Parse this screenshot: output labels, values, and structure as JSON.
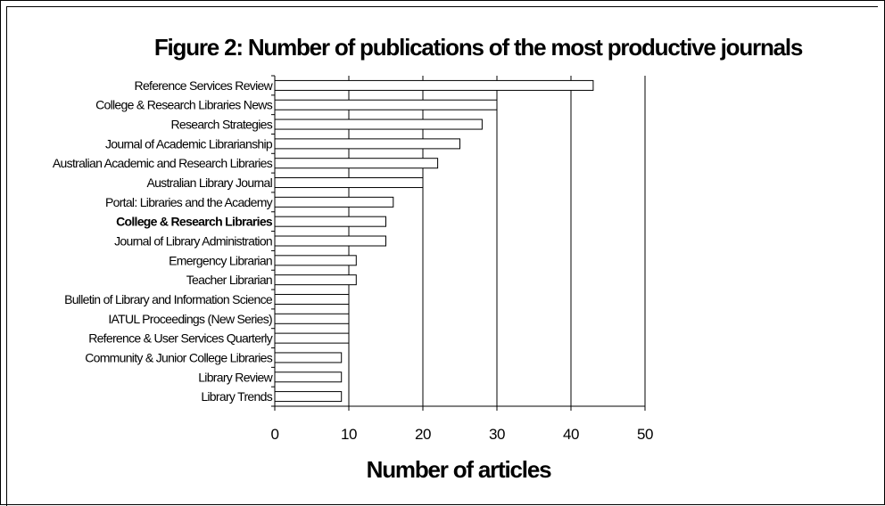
{
  "chart_data": {
    "type": "bar",
    "orientation": "horizontal",
    "title": "Figure 2: Number of publications of the most productive journals",
    "xlabel": "Number of articles",
    "ylabel": "",
    "xlim": [
      0,
      50
    ],
    "xticks": [
      "0",
      "10",
      "20",
      "30",
      "40",
      "50"
    ],
    "grid": true,
    "legend": "none",
    "bar_fill": "#ffffff",
    "bar_stroke": "#000000",
    "categories": [
      "Reference Services Review",
      "College & Research Libraries News",
      "Research Strategies",
      "Journal of Academic Librarianship",
      "Australian Academic and Research Libraries",
      "Australian Library Journal",
      "Portal: Libraries and the Academy",
      "College & Research Libraries",
      "Journal of Library Administration",
      "Emergency Librarian",
      "Teacher Librarian",
      "Bulletin of Library and Information Science",
      "IATUL Proceedings (New Series)",
      "Reference & User Services Quarterly",
      "Community & Junior College Libraries",
      "Library Review",
      "Library Trends"
    ],
    "bold_categories": [
      "College & Research Libraries"
    ],
    "values": [
      43,
      30,
      28,
      25,
      22,
      20,
      16,
      15,
      15,
      11,
      11,
      10,
      10,
      10,
      9,
      9,
      9
    ]
  }
}
